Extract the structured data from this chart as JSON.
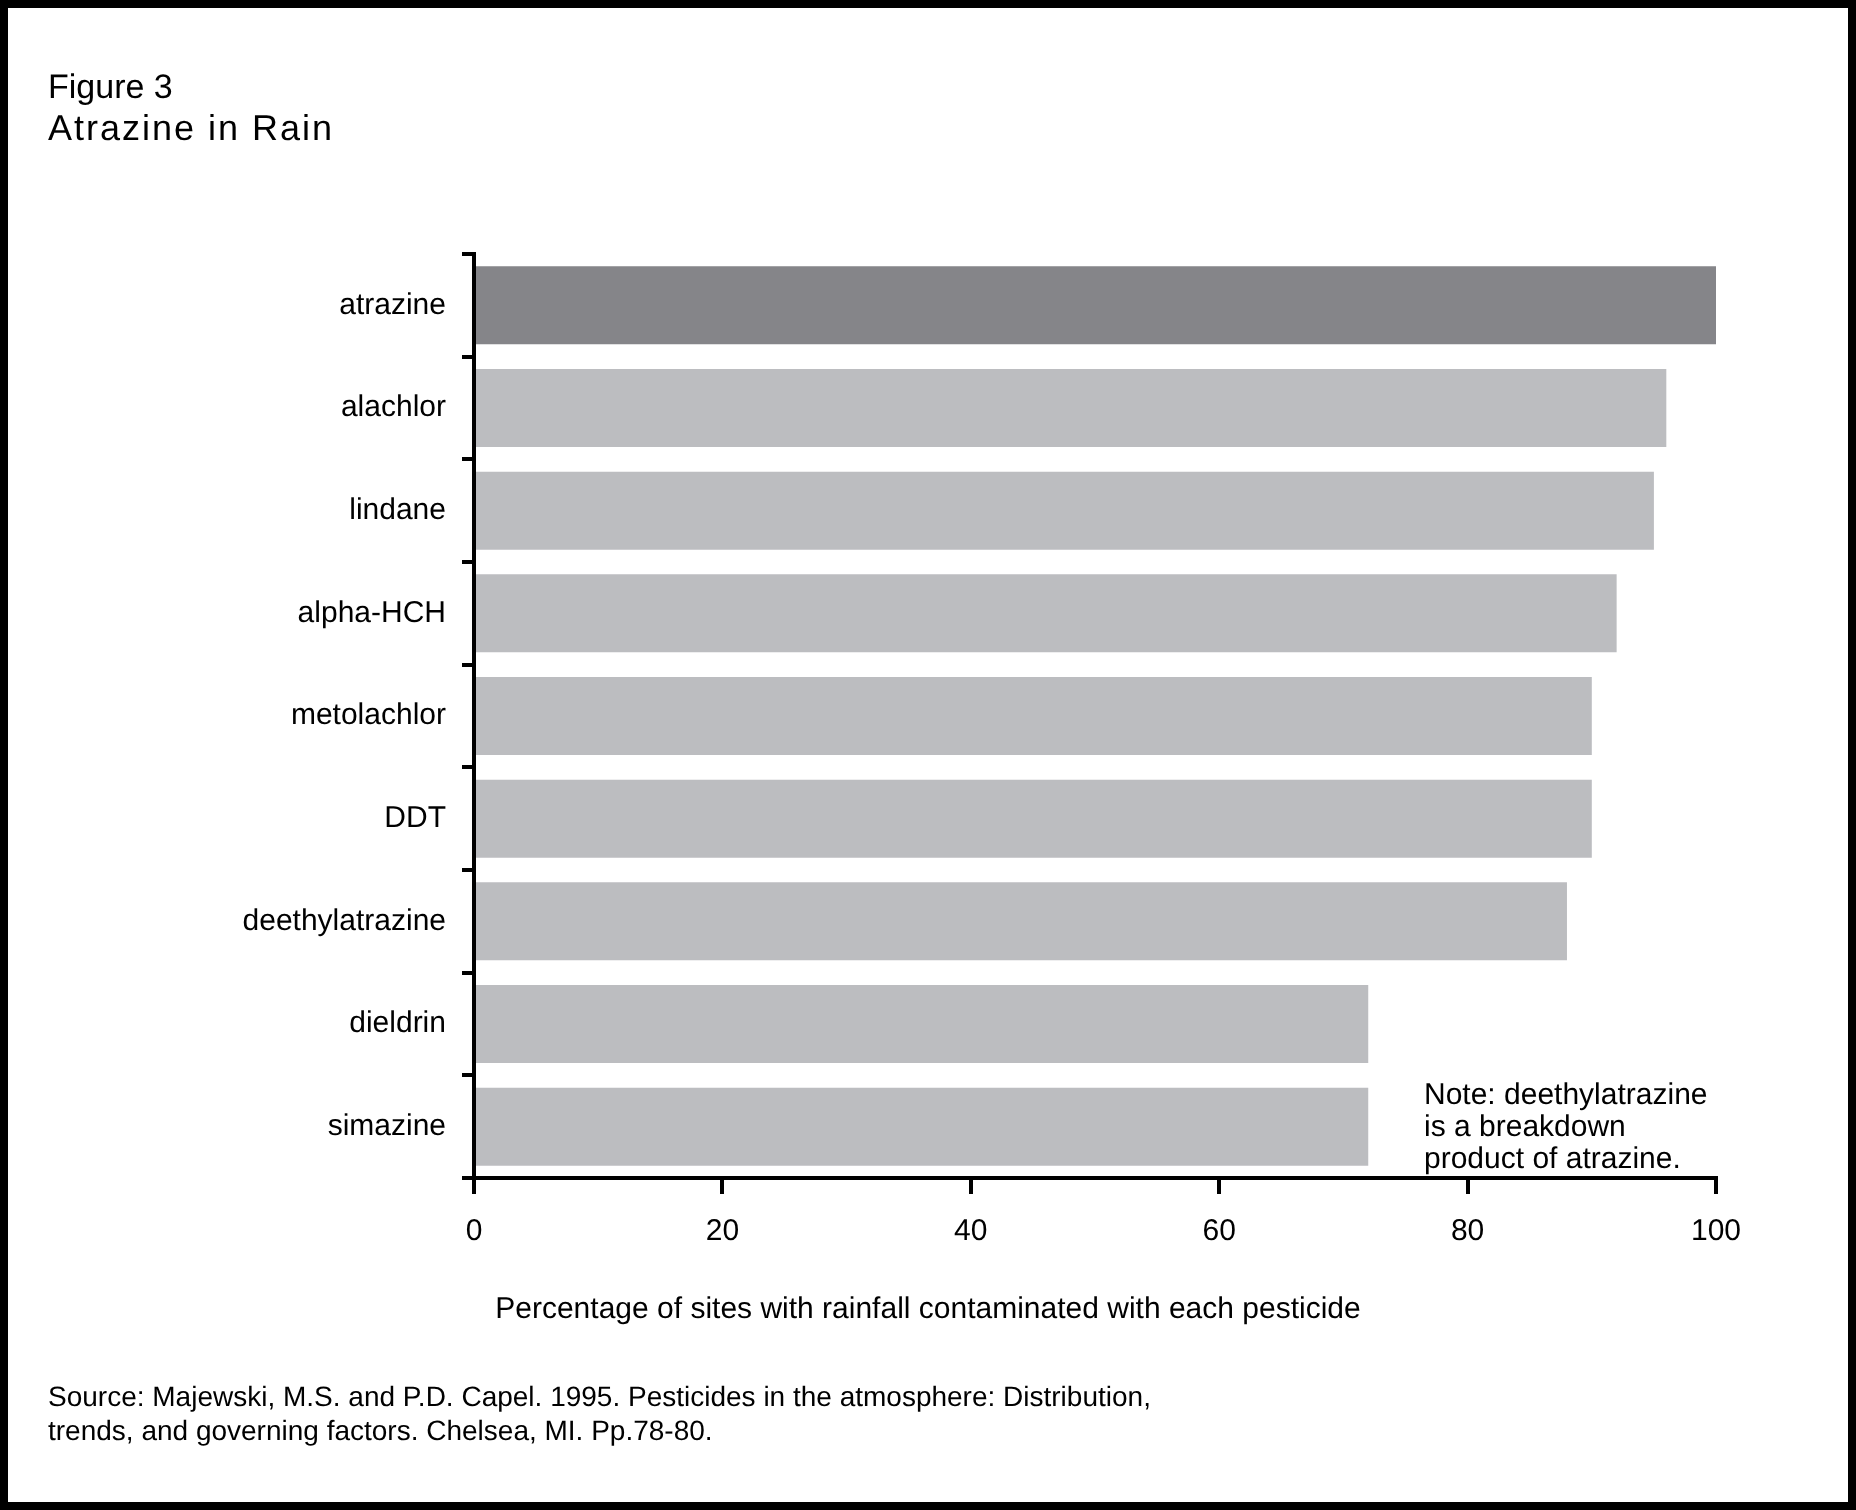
{
  "chart_data": {
    "type": "bar",
    "orientation": "horizontal",
    "title": "Figure 3",
    "subtitle": "Atrazine in Rain",
    "categories": [
      "atrazine",
      "alachlor",
      "lindane",
      "alpha-HCH",
      "metolachlor",
      "DDT",
      "deethylatrazine",
      "dieldrin",
      "simazine"
    ],
    "values": [
      100,
      96,
      95,
      92,
      90,
      90,
      88,
      72,
      72
    ],
    "colors": [
      "#858589",
      "#bcbdc0",
      "#bcbdc0",
      "#bcbdc0",
      "#bcbdc0",
      "#bcbdc0",
      "#bcbdc0",
      "#bcbdc0",
      "#bcbdc0"
    ],
    "xlim": [
      0,
      100
    ],
    "xticks": [
      0,
      20,
      40,
      60,
      80,
      100
    ],
    "grid": false,
    "legend": false,
    "xlabel": "Percentage of sites with rainfall contaminated with each pesticide",
    "annotations": [
      "Note: deethylatrazine\nis a breakdown\nproduct of atrazine.",
      "Source: Majewski, M.S. and P.D. Capel. 1995. Pesticides in the atmosphere: Distribution,\ntrends, and governing factors. Chelsea, MI. Pp.78-80."
    ]
  }
}
